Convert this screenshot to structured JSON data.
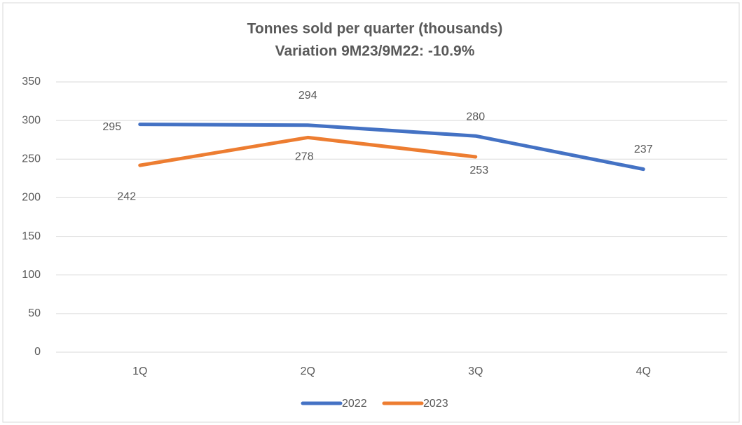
{
  "chart_data": {
    "type": "line",
    "title": "Tonnes sold per quarter (thousands)",
    "subtitle": "Variation 9M23/9M22: -10.9%",
    "categories": [
      "1Q",
      "2Q",
      "3Q",
      "4Q"
    ],
    "series": [
      {
        "name": "2022",
        "color": "#4472c4",
        "values": [
          295,
          294,
          280,
          237
        ]
      },
      {
        "name": "2023",
        "color": "#ed7d31",
        "values": [
          242,
          278,
          253,
          null
        ]
      }
    ],
    "ylim": [
      0,
      350
    ],
    "yticks": [
      0,
      50,
      100,
      150,
      200,
      250,
      300,
      350
    ],
    "grid": true,
    "legend": "bottom"
  }
}
